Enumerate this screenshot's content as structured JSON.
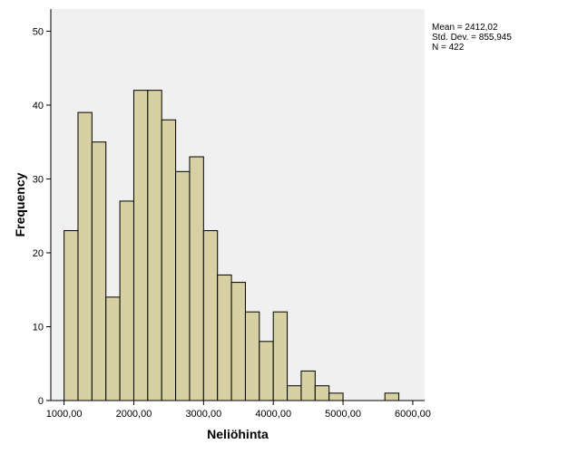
{
  "chart_data": {
    "type": "bar",
    "title": "",
    "xlabel": "Neliöhinta",
    "ylabel": "Frequency",
    "x_ticks": [
      1000,
      2000,
      3000,
      4000,
      5000,
      6000
    ],
    "x_tick_labels": [
      "1000,00",
      "2000,00",
      "3000,00",
      "4000,00",
      "5000,00",
      "6000,00"
    ],
    "y_ticks": [
      0,
      10,
      20,
      30,
      40,
      50
    ],
    "y_tick_labels": [
      "0",
      "10",
      "20",
      "30",
      "40",
      "50"
    ],
    "xlim": [
      810,
      6170
    ],
    "ylim": [
      0,
      53
    ],
    "bin_width": 200,
    "bins": [
      {
        "start": 1000,
        "end": 1200,
        "count": 23
      },
      {
        "start": 1200,
        "end": 1400,
        "count": 39
      },
      {
        "start": 1400,
        "end": 1600,
        "count": 35
      },
      {
        "start": 1600,
        "end": 1800,
        "count": 14
      },
      {
        "start": 1800,
        "end": 2000,
        "count": 27
      },
      {
        "start": 2000,
        "end": 2200,
        "count": 42
      },
      {
        "start": 2200,
        "end": 2400,
        "count": 42
      },
      {
        "start": 2400,
        "end": 2600,
        "count": 38
      },
      {
        "start": 2600,
        "end": 2800,
        "count": 31
      },
      {
        "start": 2800,
        "end": 3000,
        "count": 33
      },
      {
        "start": 3000,
        "end": 3200,
        "count": 23
      },
      {
        "start": 3200,
        "end": 3400,
        "count": 17
      },
      {
        "start": 3400,
        "end": 3600,
        "count": 16
      },
      {
        "start": 3600,
        "end": 3800,
        "count": 12
      },
      {
        "start": 3800,
        "end": 4000,
        "count": 8
      },
      {
        "start": 4000,
        "end": 4200,
        "count": 12
      },
      {
        "start": 4200,
        "end": 4400,
        "count": 2
      },
      {
        "start": 4400,
        "end": 4600,
        "count": 4
      },
      {
        "start": 4600,
        "end": 4800,
        "count": 2
      },
      {
        "start": 4800,
        "end": 5000,
        "count": 1
      },
      {
        "start": 5600,
        "end": 5800,
        "count": 1
      }
    ],
    "grid": false,
    "stats": {
      "mean": "Mean = 2412,02",
      "std": "Std. Dev. = 855,945",
      "n": "N = 422"
    },
    "colors": {
      "bar_fill": "#d6d0a2",
      "bar_stroke": "#000000",
      "plot_background": "#f0f0f0"
    }
  }
}
